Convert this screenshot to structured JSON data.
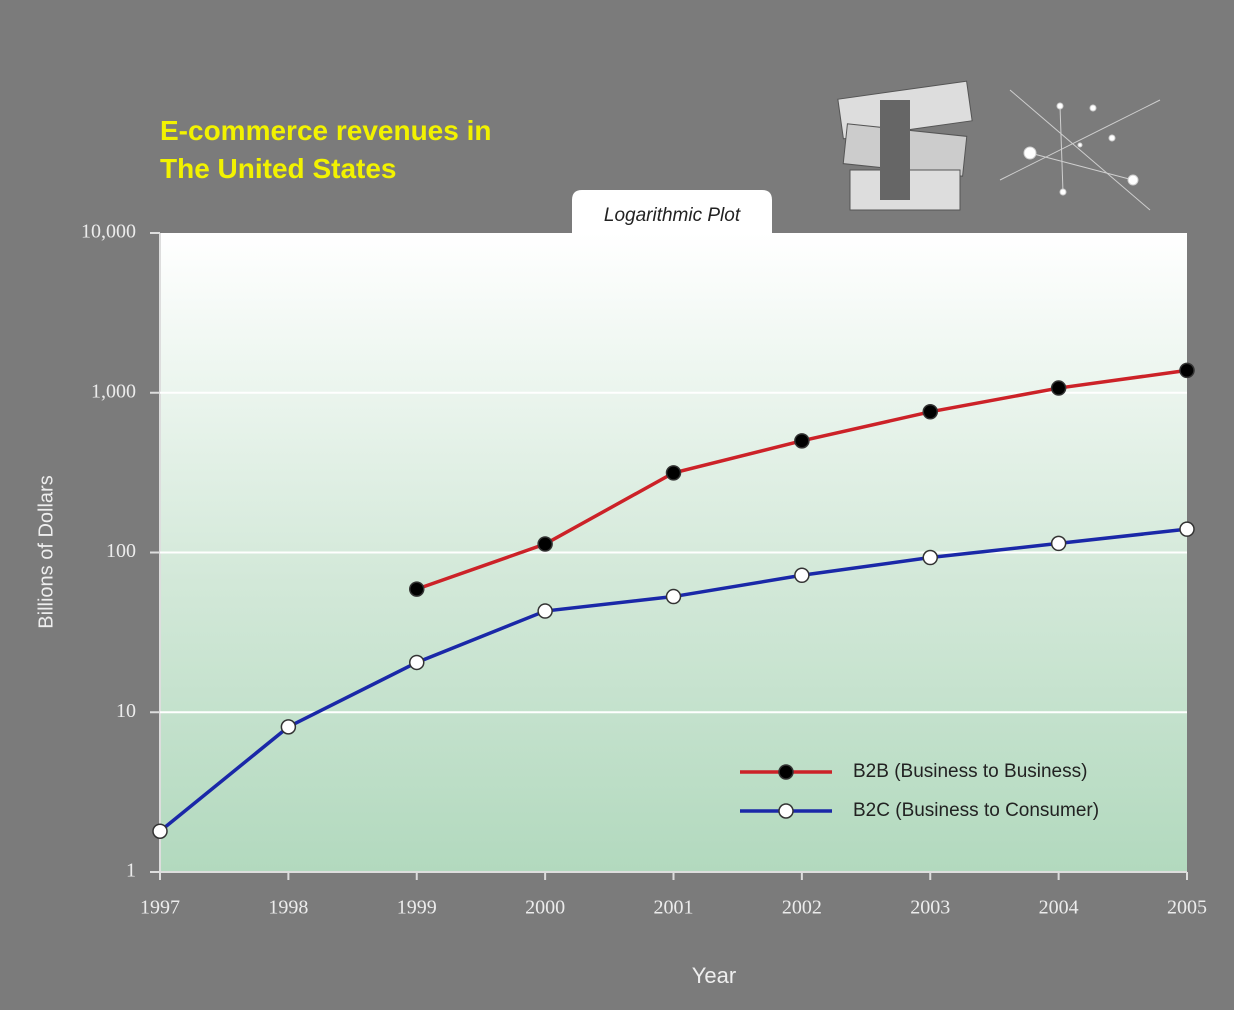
{
  "chart_data": {
    "type": "line",
    "title": "E-commerce revenues in The United States",
    "subtitle": "Logarithmic Plot",
    "xlabel": "Year",
    "ylabel": "Billions of Dollars",
    "x": [
      1997,
      1998,
      1999,
      2000,
      2001,
      2002,
      2003,
      2004,
      2005
    ],
    "xlim": [
      1997,
      2005
    ],
    "xticks": [
      1997,
      1998,
      1999,
      2000,
      2001,
      2002,
      2003,
      2004,
      2005
    ],
    "ylim": [
      1,
      10000
    ],
    "yticks": [
      1,
      10,
      100,
      {
        "value": 1000,
        "label": "1,000"
      },
      {
        "value": 10000,
        "label": "10,000"
      }
    ],
    "yscale": "log",
    "grid": true,
    "legend": "lower right",
    "series": [
      {
        "name": "B2B (Business to Business)",
        "color": "#cc2228",
        "marker_color": "#000000",
        "values": [
          null,
          null,
          59,
          113,
          315,
          500,
          760,
          1070,
          1380
        ]
      },
      {
        "name": "B2C (Business to Consumer)",
        "color": "#1a28a8",
        "marker_color": "#ffffff",
        "values": [
          1.8,
          8.1,
          20.5,
          43,
          53,
          72,
          93,
          114,
          140
        ]
      }
    ]
  }
}
